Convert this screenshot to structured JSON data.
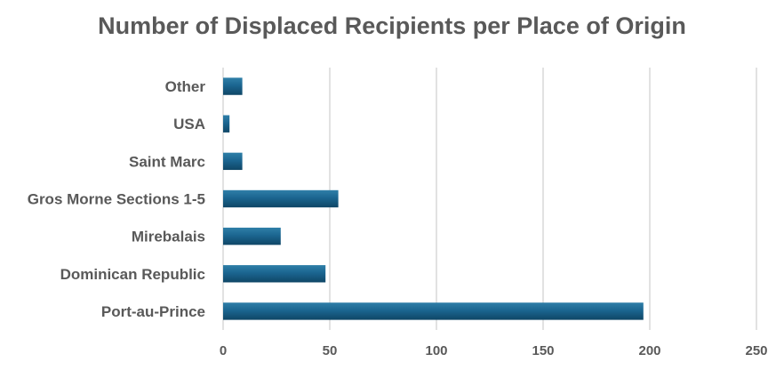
{
  "chart_data": {
    "type": "bar",
    "orientation": "horizontal",
    "title": "Number of Displaced Recipients per Place of Origin",
    "xlabel": "",
    "ylabel": "",
    "categories": [
      "Port-au-Prince",
      "Dominican Republic",
      "Mirebalais",
      "Gros Morne Sections 1-5",
      "Saint Marc",
      "USA",
      "Other"
    ],
    "values": [
      197,
      48,
      27,
      54,
      9,
      3,
      9
    ],
    "xlim": [
      0,
      250
    ],
    "xticks": [
      "0",
      "50",
      "100",
      "150",
      "200",
      "250"
    ],
    "grid": true,
    "legend": "none",
    "bar_color_top": "#2f7fa8",
    "bar_color_mid": "#1b6590",
    "bar_color_bottom": "#0f4666"
  }
}
